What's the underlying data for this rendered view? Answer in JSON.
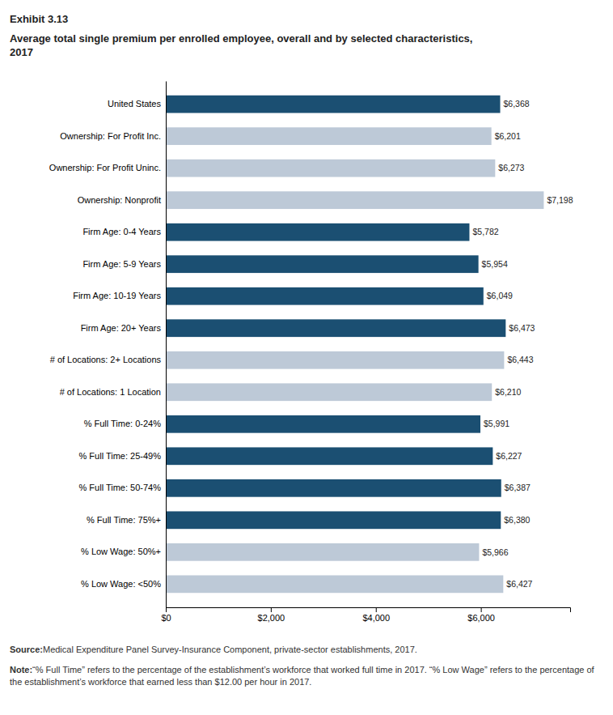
{
  "chart_data": {
    "type": "bar",
    "orientation": "horizontal",
    "title": "Exhibit 3.13",
    "subtitle": "Average total single premium per enrolled employee, overall and by selected characteristics,\n2017",
    "categories": [
      "United States",
      "Ownership: For Profit Inc.",
      "Ownership: For Profit Uninc.",
      "Ownership: Nonprofit",
      "Firm Age: 0-4 Years",
      "Firm Age: 5-9 Years",
      "Firm Age: 10-19 Years",
      "Firm Age: 20+ Years",
      "# of Locations: 2+ Locations",
      "# of Locations: 1 Location",
      "% Full Time: 0-24%",
      "% Full Time: 25-49%",
      "% Full Time: 50-74%",
      "% Full Time: 75%+",
      "% Low Wage: 50%+",
      "% Low Wage: <50%"
    ],
    "values": [
      6368,
      6201,
      6273,
      7198,
      5782,
      5954,
      6049,
      6473,
      6443,
      6210,
      5991,
      6227,
      6387,
      6380,
      5966,
      6427
    ],
    "value_labels": [
      "$6,368",
      "$6,201",
      "$6,273",
      "$7,198",
      "$5,782",
      "$5,954",
      "$6,049",
      "$6,473",
      "$6,443",
      "$6,210",
      "$5,991",
      "$6,227",
      "$6,387",
      "$6,380",
      "$5,966",
      "$6,427"
    ],
    "data_labels": true,
    "colors": [
      "#1B4F72",
      "#BDC9D7",
      "#BDC9D7",
      "#BDC9D7",
      "#1B4F72",
      "#1B4F72",
      "#1B4F72",
      "#1B4F72",
      "#BDC9D7",
      "#BDC9D7",
      "#1B4F72",
      "#1B4F72",
      "#1B4F72",
      "#1B4F72",
      "#BDC9D7",
      "#BDC9D7"
    ],
    "xlim": [
      0,
      7700
    ],
    "xticks": [
      {
        "value": 0,
        "label": "$0"
      },
      {
        "value": 2000,
        "label": "$2,000"
      },
      {
        "value": 4000,
        "label": "$4,000"
      },
      {
        "value": 6000,
        "label": "$6,000"
      }
    ],
    "grid": false,
    "annotations": [
      "Source:",
      " Medical Expenditure Panel Survey-Insurance Component, private-sector establishments, 2017.",
      "Note:",
      " “% Full Time” refers to the percentage of the establishment’s workforce that worked full time in 2017. “% Low Wage” refers to the percentage of the establishment’s workforce that earned less than $12.00 per hour in 2017."
    ]
  }
}
